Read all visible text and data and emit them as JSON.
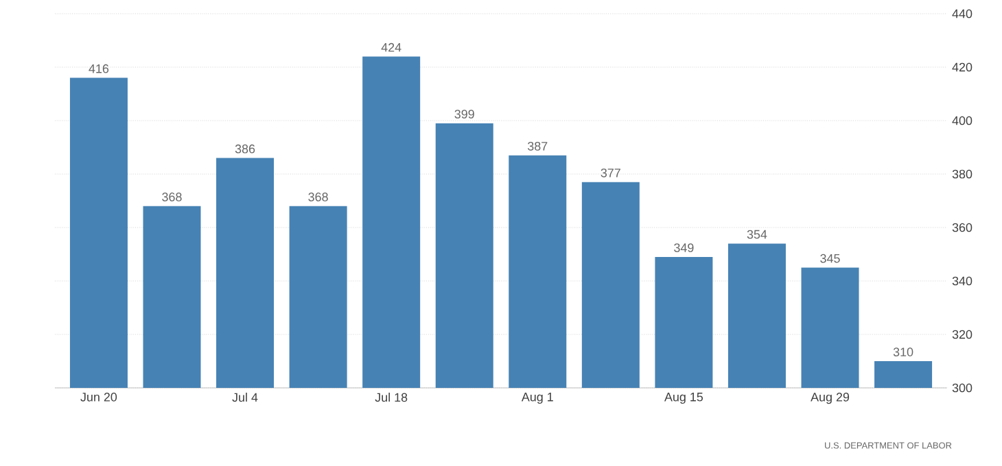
{
  "chart_data": {
    "type": "bar",
    "categories": [
      "Jun 20",
      null,
      "Jul 4",
      null,
      "Jul 18",
      null,
      "Aug 1",
      null,
      "Aug 15",
      null,
      "Aug 29",
      null
    ],
    "values": [
      416,
      368,
      386,
      368,
      424,
      399,
      387,
      377,
      349,
      354,
      345,
      310
    ],
    "color": "#4682b4",
    "ylim": [
      300,
      440
    ],
    "yticks": [
      300,
      320,
      340,
      360,
      380,
      400,
      420,
      440
    ],
    "grid": "y",
    "data_labels": true,
    "annotations": [
      "U.S. DEPARTMENT OF LABOR"
    ]
  }
}
